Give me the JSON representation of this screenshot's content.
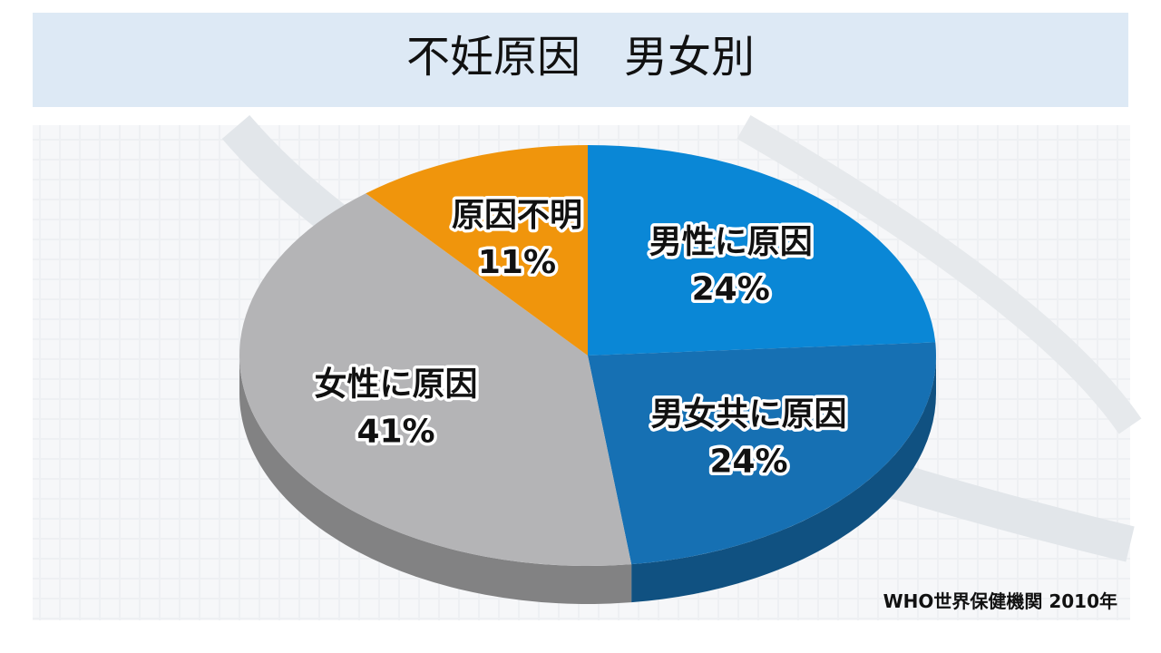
{
  "chart_data": {
    "type": "pie",
    "title": "不妊原因　男女別",
    "categories": [
      "男性に原因",
      "男女共に原因",
      "女性に原因",
      "原因不明"
    ],
    "values": [
      24,
      24,
      41,
      11
    ],
    "value_labels": [
      "24%",
      "24%",
      "41%",
      "11%"
    ],
    "colors": [
      "#0a87d6",
      "#1670b3",
      "#b4b4b6",
      "#f0950c"
    ],
    "source": "WHO世界保健機関 2010年"
  }
}
